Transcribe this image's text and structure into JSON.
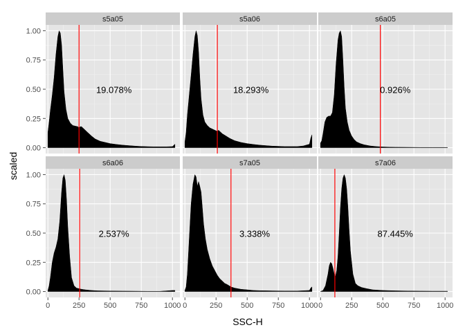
{
  "chart_data": {
    "type": "area",
    "xlabel": "SSC-H",
    "ylabel": "scaled",
    "xlim": [
      0,
      1024
    ],
    "ylim": [
      0,
      1
    ],
    "x_ticks": [
      0,
      250,
      500,
      750,
      1000
    ],
    "x_tick_labels": [
      "0",
      "250",
      "500",
      "750",
      "1000"
    ],
    "y_ticks": [
      0,
      0.25,
      0.5,
      0.75,
      1.0
    ],
    "y_tick_labels": [
      "0.00",
      "0.25",
      "0.50",
      "0.75",
      "1.00"
    ],
    "grid": true,
    "colors": {
      "panel_bg": "#e5e5e5",
      "strip_bg": "#cccccc",
      "grid_major": "#ffffff",
      "grid_minor": "#f2f2f2",
      "density": "#000000",
      "cutoff": "#ff0000"
    },
    "panels": [
      {
        "name": "s5a05",
        "cutoff": 250,
        "percent_label": "19.078%",
        "label_x": 530,
        "label_y": 0.49,
        "x": [
          0,
          10,
          20,
          35,
          50,
          65,
          80,
          90,
          100,
          110,
          120,
          130,
          145,
          160,
          180,
          200,
          220,
          240,
          250,
          260,
          270,
          290,
          320,
          350,
          380,
          420,
          460,
          500,
          550,
          600,
          650,
          700,
          750,
          800,
          850,
          900,
          950,
          1000,
          1010,
          1020
        ],
        "y": [
          0.13,
          0.22,
          0.32,
          0.45,
          0.6,
          0.8,
          0.95,
          1.0,
          0.98,
          0.88,
          0.68,
          0.48,
          0.33,
          0.25,
          0.21,
          0.19,
          0.185,
          0.18,
          0.17,
          0.18,
          0.18,
          0.16,
          0.13,
          0.1,
          0.075,
          0.055,
          0.045,
          0.035,
          0.028,
          0.022,
          0.018,
          0.014,
          0.011,
          0.009,
          0.008,
          0.008,
          0.008,
          0.01,
          0.02,
          0.03
        ]
      },
      {
        "name": "s5a06",
        "cutoff": 260,
        "percent_label": "18.293%",
        "label_x": 530,
        "label_y": 0.49,
        "x": [
          0,
          10,
          20,
          35,
          50,
          65,
          80,
          90,
          100,
          110,
          120,
          130,
          145,
          160,
          180,
          200,
          220,
          240,
          260,
          270,
          280,
          300,
          330,
          360,
          400,
          450,
          500,
          550,
          600,
          650,
          700,
          750,
          800,
          850,
          900,
          950,
          1000,
          1010,
          1020
        ],
        "y": [
          0.05,
          0.13,
          0.28,
          0.45,
          0.62,
          0.8,
          0.95,
          1.0,
          0.96,
          0.82,
          0.6,
          0.42,
          0.28,
          0.22,
          0.19,
          0.17,
          0.16,
          0.15,
          0.14,
          0.15,
          0.14,
          0.12,
          0.1,
          0.08,
          0.06,
          0.045,
          0.035,
          0.028,
          0.022,
          0.018,
          0.014,
          0.012,
          0.01,
          0.01,
          0.01,
          0.015,
          0.03,
          0.08,
          0.11
        ]
      },
      {
        "name": "s6a05",
        "cutoff": 480,
        "percent_label": "0.926%",
        "label_x": 600,
        "label_y": 0.49,
        "x": [
          0,
          10,
          20,
          35,
          50,
          65,
          80,
          95,
          110,
          125,
          140,
          150,
          160,
          170,
          180,
          190,
          200,
          215,
          230,
          250,
          270,
          290,
          320,
          350,
          400,
          450,
          500,
          550,
          600,
          700,
          800,
          900,
          1000,
          1020
        ],
        "y": [
          0.04,
          0.06,
          0.12,
          0.22,
          0.26,
          0.27,
          0.27,
          0.3,
          0.45,
          0.72,
          0.92,
          0.98,
          1.0,
          0.95,
          0.75,
          0.52,
          0.34,
          0.22,
          0.15,
          0.1,
          0.07,
          0.05,
          0.035,
          0.025,
          0.015,
          0.01,
          0.007,
          0.005,
          0.004,
          0.003,
          0.002,
          0.002,
          0.002,
          0.002
        ]
      },
      {
        "name": "s6a06",
        "cutoff": 255,
        "percent_label": "2.537%",
        "label_x": 530,
        "label_y": 0.49,
        "x": [
          0,
          10,
          20,
          35,
          50,
          65,
          80,
          95,
          110,
          120,
          130,
          140,
          150,
          160,
          175,
          190,
          210,
          230,
          250,
          270,
          300,
          350,
          400,
          500,
          600,
          700,
          800,
          900,
          1000,
          1020
        ],
        "y": [
          0.01,
          0.05,
          0.12,
          0.25,
          0.33,
          0.38,
          0.45,
          0.6,
          0.85,
          0.97,
          1.0,
          0.95,
          0.78,
          0.55,
          0.3,
          0.12,
          0.05,
          0.03,
          0.025,
          0.02,
          0.015,
          0.01,
          0.007,
          0.005,
          0.004,
          0.003,
          0.002,
          0.002,
          0.01,
          0.01
        ]
      },
      {
        "name": "s7a05",
        "cutoff": 370,
        "percent_label": "3.338%",
        "label_x": 560,
        "label_y": 0.49,
        "x": [
          0,
          10,
          20,
          35,
          50,
          65,
          80,
          90,
          100,
          110,
          120,
          130,
          140,
          150,
          165,
          180,
          200,
          220,
          240,
          260,
          280,
          300,
          320,
          340,
          370,
          400,
          450,
          500,
          550,
          600,
          700,
          800,
          900,
          1000,
          1010,
          1020
        ],
        "y": [
          0.01,
          0.04,
          0.15,
          0.45,
          0.75,
          0.92,
          1.0,
          0.98,
          0.9,
          0.94,
          0.9,
          0.85,
          0.72,
          0.58,
          0.45,
          0.36,
          0.28,
          0.22,
          0.18,
          0.14,
          0.11,
          0.09,
          0.07,
          0.06,
          0.04,
          0.03,
          0.02,
          0.015,
          0.01,
          0.008,
          0.006,
          0.005,
          0.005,
          0.01,
          0.03,
          0.04
        ]
      },
      {
        "name": "s7a06",
        "cutoff": 115,
        "percent_label": "87.445%",
        "label_x": 600,
        "label_y": 0.49,
        "x": [
          0,
          20,
          40,
          60,
          70,
          80,
          90,
          100,
          110,
          120,
          130,
          140,
          150,
          160,
          170,
          180,
          190,
          200,
          210,
          220,
          230,
          240,
          260,
          280,
          300,
          330,
          370,
          420,
          500,
          600,
          700,
          800,
          900,
          1000,
          1020
        ],
        "y": [
          0.0,
          0.01,
          0.05,
          0.15,
          0.22,
          0.25,
          0.24,
          0.2,
          0.15,
          0.13,
          0.18,
          0.3,
          0.5,
          0.72,
          0.88,
          0.97,
          1.0,
          0.97,
          0.88,
          0.72,
          0.52,
          0.35,
          0.15,
          0.07,
          0.05,
          0.035,
          0.025,
          0.015,
          0.01,
          0.007,
          0.005,
          0.004,
          0.003,
          0.003,
          0.003
        ]
      }
    ]
  }
}
